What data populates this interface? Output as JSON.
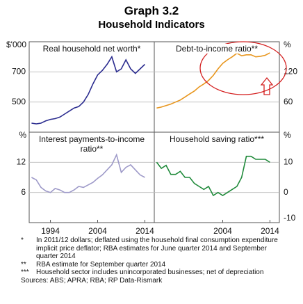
{
  "header": {
    "title": "Graph 3.2",
    "subtitle": "Household Indicators"
  },
  "chart_data": [
    {
      "type": "line",
      "title": "Real household net worth*",
      "unit": "$'000",
      "color": "#2b2c8f",
      "x": [
        1990,
        1991,
        1992,
        1993,
        1994,
        1995,
        1996,
        1997,
        1998,
        1999,
        2000,
        2001,
        2002,
        2003,
        2004,
        2005,
        2006,
        2007,
        2008,
        2009,
        2010,
        2011,
        2012,
        2013,
        2014
      ],
      "values": [
        360,
        355,
        360,
        375,
        385,
        390,
        400,
        420,
        440,
        460,
        470,
        500,
        550,
        620,
        680,
        710,
        750,
        800,
        700,
        720,
        780,
        720,
        690,
        720,
        750
      ],
      "xlim": [
        1989.5,
        2016
      ],
      "ylim": [
        300,
        900
      ],
      "yticks": [
        500,
        700
      ],
      "grid": true
    },
    {
      "type": "line",
      "title": "Debt-to-income ratio**",
      "unit": "%",
      "color": "#e8961e",
      "x": [
        1990,
        1991,
        1992,
        1993,
        1994,
        1995,
        1996,
        1997,
        1998,
        1999,
        2000,
        2001,
        2002,
        2003,
        2004,
        2005,
        2006,
        2007,
        2008,
        2009,
        2010,
        2011,
        2012,
        2013,
        2014
      ],
      "values": [
        48,
        50,
        53,
        56,
        60,
        64,
        70,
        76,
        82,
        90,
        96,
        103,
        113,
        126,
        137,
        144,
        150,
        157,
        152,
        154,
        154,
        150,
        151,
        153,
        158
      ],
      "xlim": [
        1989.5,
        2016
      ],
      "ylim": [
        0,
        180
      ],
      "yticks": [
        60,
        120
      ],
      "grid": true
    },
    {
      "type": "line",
      "title": "Interest payments-to-income ratio**",
      "unit": "%",
      "color": "#9d99c8",
      "x": [
        1990,
        1991,
        1992,
        1993,
        1994,
        1995,
        1996,
        1997,
        1998,
        1999,
        2000,
        2001,
        2002,
        2003,
        2004,
        2005,
        2006,
        2007,
        2008,
        2009,
        2010,
        2011,
        2012,
        2013,
        2014
      ],
      "values": [
        9,
        8.5,
        7,
        6.3,
        6,
        6.8,
        6.5,
        6,
        6,
        6.5,
        7.2,
        7,
        7.5,
        8,
        8.8,
        9.5,
        10.5,
        11.5,
        13.5,
        10,
        11,
        11.5,
        10.5,
        9.5,
        9
      ],
      "xlim": [
        1989.5,
        2016
      ],
      "ylim": [
        0,
        18
      ],
      "yticks": [
        6,
        12
      ],
      "xticks": [
        1994,
        2004,
        2014
      ],
      "grid": true
    },
    {
      "type": "line",
      "title": "Household saving ratio***",
      "unit": "%",
      "color": "#1f8a3a",
      "x": [
        1990,
        1991,
        1992,
        1993,
        1994,
        1995,
        1996,
        1997,
        1998,
        1999,
        2000,
        2001,
        2002,
        2003,
        2004,
        2005,
        2006,
        2007,
        2008,
        2009,
        2010,
        2011,
        2012,
        2013,
        2014
      ],
      "values": [
        10,
        8,
        9,
        6,
        6,
        7,
        5,
        5,
        3,
        2,
        1,
        2,
        -1,
        0,
        -1,
        0,
        1,
        2,
        5,
        12,
        12,
        11,
        11,
        11,
        10
      ],
      "xlim": [
        1989.5,
        2016
      ],
      "ylim": [
        -10,
        20
      ],
      "yticks": [
        -10,
        0,
        10
      ],
      "xticks": [
        2004,
        2014
      ],
      "grid": true
    }
  ],
  "footnotes": [
    {
      "marker": "*",
      "text": "In 2011/12 dollars; deflated using the household final consumption expenditure implicit price deflator; RBA estimates for June quarter 2014 and September quarter 2014"
    },
    {
      "marker": "**",
      "text": "RBA estimate for September quarter 2014"
    },
    {
      "marker": "***",
      "text": "Household sector includes unincorporated businesses; net of depreciation"
    }
  ],
  "sources": "Sources: ABS; APRA; RBA; RP Data-Rismark"
}
